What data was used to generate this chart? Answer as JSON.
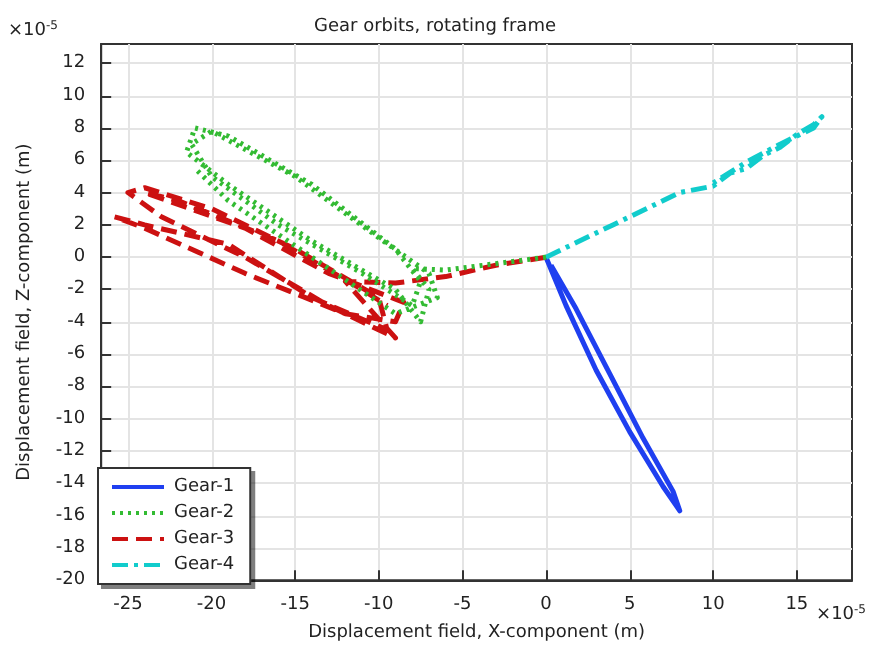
{
  "chart_data": {
    "type": "line",
    "title": "Gear orbits, rotating frame",
    "xlabel": "Displacement field, X-component (m)",
    "ylabel": "Displacement field, Z-component (m)",
    "annotations": [
      "×10$^{-5}$",
      "×10$^{-5}$"
    ],
    "xlim": [
      -26.6,
      18.3
    ],
    "xticks": [
      -25,
      -20,
      -15,
      -10,
      -5,
      0,
      5,
      10,
      15
    ],
    "ylim": [
      -20,
      13.2
    ],
    "yticks": [
      -20,
      -18,
      -16,
      -14,
      -12,
      -10,
      -8,
      -6,
      -4,
      -2,
      0,
      2,
      4,
      6,
      8,
      10,
      12
    ],
    "grid": true,
    "legend": "bottom left",
    "marker": "none",
    "series": [
      {
        "name": "Gear-1",
        "color": "#1f3ff0",
        "line_style": "solid",
        "x": [
          0,
          1.2,
          3,
          5,
          7,
          8,
          7.6,
          5.8,
          3.8,
          1.8,
          0.3
        ],
        "values": [
          0,
          -3,
          -7,
          -10.8,
          -14.2,
          -15.7,
          -14.5,
          -11.2,
          -7.2,
          -3.2,
          -0.5
        ]
      },
      {
        "name": "Gear-2",
        "color": "#33bb33",
        "line_style": "dotted",
        "x": [
          0,
          -3,
          -6,
          -8,
          -7,
          -7.5,
          -9,
          -14,
          -19,
          -21.5,
          -21,
          -19,
          -14,
          -9,
          -7.5,
          -8,
          -11,
          -16,
          -20,
          -21.2,
          -20,
          -15,
          -10,
          -7,
          -6.5,
          -9,
          -14,
          -19,
          -21
        ],
        "values": [
          0,
          -0.4,
          -0.8,
          -0.7,
          -2,
          -4,
          -2,
          1,
          4.5,
          6.5,
          8,
          7.5,
          4.5,
          0.5,
          -1.5,
          -3,
          -1,
          2,
          5,
          7,
          7.8,
          5,
          1.2,
          -1,
          -2.5,
          -3.5,
          0,
          3.5,
          5.5
        ]
      },
      {
        "name": "Gear-3",
        "color": "#cc1111",
        "line_style": "dashed",
        "x": [
          0,
          -3,
          -6,
          -9,
          -12,
          -9,
          -13,
          -18,
          -23,
          -25,
          -24,
          -20,
          -15,
          -10,
          -9.5,
          -14,
          -19,
          -24,
          -25.8,
          -24,
          -18,
          -12,
          -9,
          -8.5,
          -13,
          -18,
          -24,
          -22,
          -16,
          -11,
          -9.5
        ],
        "values": [
          0,
          -0.5,
          -1.2,
          -1.6,
          -1.5,
          -5,
          -3,
          0,
          2.5,
          4,
          4.3,
          3,
          0.5,
          -2.5,
          -4.5,
          -2.5,
          0.8,
          2,
          2.5,
          1.8,
          -1,
          -3.5,
          -4,
          -2.8,
          -1,
          1.8,
          4,
          3.5,
          1,
          -2,
          -3
        ]
      },
      {
        "name": "Gear-4",
        "color": "#11cccc",
        "line_style": "dashdot",
        "x": [
          0,
          4,
          8,
          10,
          11,
          12,
          13,
          14,
          15,
          16,
          16.5,
          16,
          14,
          12,
          10
        ],
        "values": [
          0,
          2,
          4,
          4.4,
          5.2,
          5.5,
          6.3,
          6.8,
          7.6,
          8.2,
          8.7,
          8.0,
          7.0,
          5.9,
          4.6
        ]
      }
    ]
  }
}
